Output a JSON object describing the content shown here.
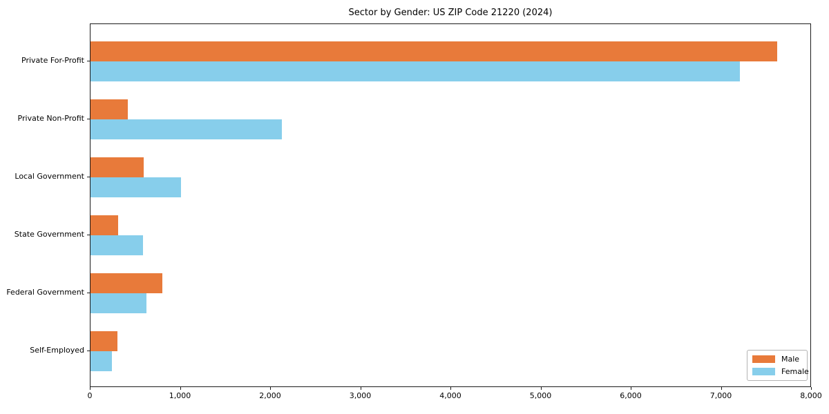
{
  "chart_data": {
    "type": "bar",
    "orientation": "horizontal",
    "title": "Sector by Gender: US ZIP Code 21220 (2024)",
    "categories": [
      "Private For-Profit",
      "Private Non-Profit",
      "Local Government",
      "State Government",
      "Federal Government",
      "Self-Employed"
    ],
    "series": [
      {
        "name": "Male",
        "color": "#e87a3a",
        "values": [
          7620,
          410,
          590,
          310,
          800,
          300
        ]
      },
      {
        "name": "Female",
        "color": "#87ceeb",
        "values": [
          7200,
          2120,
          1000,
          580,
          620,
          240
        ]
      }
    ],
    "xlabel": "",
    "ylabel": "",
    "xlim": [
      0,
      8000
    ],
    "xticks": [
      0,
      1000,
      2000,
      3000,
      4000,
      5000,
      6000,
      7000,
      8000
    ],
    "xtick_labels": [
      "0",
      "1,000",
      "2,000",
      "3,000",
      "4,000",
      "5,000",
      "6,000",
      "7,000",
      "8,000"
    ],
    "grid": false,
    "legend_position": "lower right",
    "legend_entries": [
      "Male",
      "Female"
    ]
  }
}
